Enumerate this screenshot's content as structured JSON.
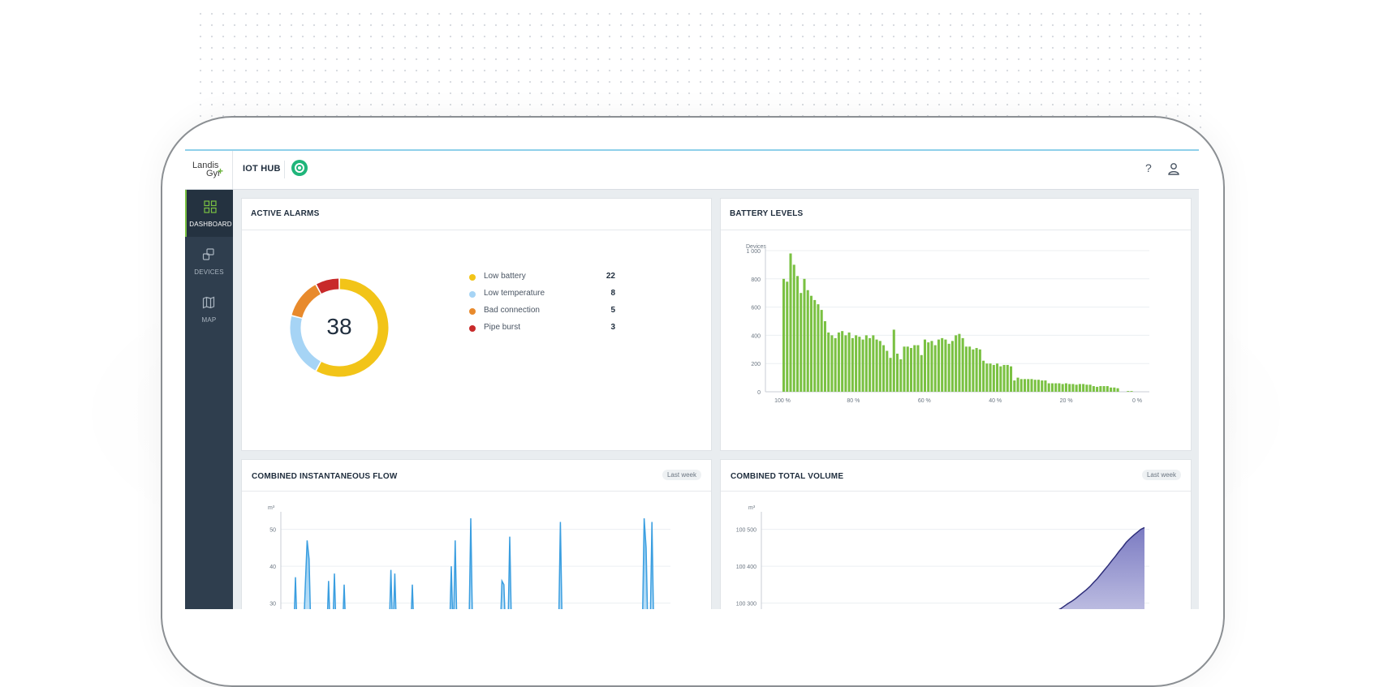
{
  "header": {
    "logo_line1": "Landis",
    "logo_line2": "Gyr",
    "logo_plus": "+",
    "app_title": "IOT HUB",
    "help": "?"
  },
  "sidebar": {
    "items": [
      {
        "label": "DASHBOARD",
        "icon": "grid-icon",
        "active": true
      },
      {
        "label": "DEVICES",
        "icon": "devices-icon",
        "active": false
      },
      {
        "label": "MAP",
        "icon": "map-icon",
        "active": false
      }
    ]
  },
  "colors": {
    "accent": "#7ac142",
    "sidebar": "#2f3e4e",
    "battery_bar": "#7ac142",
    "flow": "#3a9ee0",
    "volume": "#5c5caa"
  },
  "alarms": {
    "title": "ACTIVE ALARMS",
    "total": "38",
    "chart_data": {
      "type": "pie",
      "labels": [
        "Low battery",
        "Low temperature",
        "Bad connection",
        "Pipe burst"
      ],
      "values": [
        22,
        8,
        5,
        3
      ],
      "colors": [
        "#f2c418",
        "#a6d4f5",
        "#e88a2c",
        "#c82a2a"
      ]
    },
    "items": [
      {
        "name": "Low battery",
        "value": "22",
        "color": "#f2c418"
      },
      {
        "name": "Low temperature",
        "value": "8",
        "color": "#a6d4f5"
      },
      {
        "name": "Bad connection",
        "value": "5",
        "color": "#e88a2c"
      },
      {
        "name": "Pipe burst",
        "value": "3",
        "color": "#c82a2a"
      }
    ]
  },
  "battery": {
    "title": "BATTERY LEVELS",
    "chart_data": {
      "type": "bar",
      "ylabel": "Devices",
      "ylim": [
        0,
        1000
      ],
      "yticks": [
        "0",
        "200",
        "400",
        "600",
        "800",
        "1 000"
      ],
      "xticks": [
        "100 %",
        "80 %",
        "60 %",
        "40 %",
        "20 %",
        "0 %"
      ],
      "values": [
        800,
        780,
        980,
        900,
        820,
        700,
        800,
        720,
        680,
        650,
        620,
        580,
        500,
        420,
        400,
        380,
        420,
        430,
        400,
        420,
        380,
        400,
        390,
        370,
        400,
        380,
        400,
        370,
        360,
        330,
        290,
        240,
        440,
        270,
        230,
        320,
        320,
        310,
        330,
        330,
        260,
        370,
        350,
        360,
        330,
        370,
        380,
        370,
        340,
        360,
        400,
        410,
        380,
        320,
        320,
        300,
        310,
        300,
        220,
        200,
        200,
        190,
        200,
        180,
        190,
        190,
        180,
        80,
        100,
        90,
        90,
        90,
        90,
        85,
        85,
        80,
        80,
        60,
        60,
        60,
        60,
        55,
        60,
        55,
        55,
        50,
        55,
        55,
        50,
        50,
        40,
        35,
        40,
        40,
        40,
        30,
        30,
        25,
        0,
        0,
        5,
        5,
        0
      ]
    }
  },
  "flow": {
    "title": "COMBINED INSTANTANEOUS FLOW",
    "badge": "Last week",
    "chart_data": {
      "type": "area",
      "ylabel": "m³",
      "yticks": [
        "30",
        "40",
        "50"
      ],
      "ylim": [
        20,
        53
      ],
      "values": [
        20,
        20,
        20,
        20,
        20,
        37,
        20,
        20,
        20,
        20,
        34,
        47,
        42,
        20,
        20,
        20,
        20,
        20,
        20,
        20,
        20,
        20,
        36,
        20,
        20,
        38,
        20,
        20,
        20,
        20,
        35,
        20,
        20,
        20,
        20,
        20,
        20,
        20,
        20,
        20,
        20,
        20,
        20,
        20,
        20,
        20,
        20,
        20,
        20,
        20,
        20,
        20,
        20,
        20,
        39,
        20,
        38,
        20,
        20,
        20,
        20,
        20,
        20,
        20,
        20,
        35,
        20,
        20,
        20,
        20,
        20,
        20,
        20,
        20,
        20,
        20,
        20,
        20,
        20,
        20,
        20,
        20,
        20,
        20,
        20,
        40,
        20,
        47,
        20,
        20,
        20,
        20,
        20,
        20,
        20,
        53,
        20,
        20,
        20,
        20,
        20,
        20,
        20,
        20,
        20,
        20,
        20,
        20,
        20,
        20,
        20,
        36,
        35,
        20,
        20,
        48,
        20,
        20,
        20,
        20,
        20,
        20,
        20,
        20,
        20,
        20,
        20,
        20,
        20,
        20,
        20,
        20,
        20,
        20,
        20,
        20,
        20,
        20,
        20,
        20,
        20,
        52,
        20,
        20,
        20,
        20,
        20,
        20,
        20,
        20,
        20,
        20,
        20,
        20,
        20,
        20,
        20,
        20,
        20,
        20,
        20,
        20,
        20,
        20,
        20,
        20,
        20,
        20,
        20,
        20,
        20,
        20,
        20,
        20,
        20,
        20,
        20,
        20,
        20,
        20,
        20,
        20,
        20,
        20,
        53,
        45,
        20,
        20,
        52,
        20,
        20,
        20,
        20,
        20,
        20,
        20
      ]
    }
  },
  "volume": {
    "title": "COMBINED TOTAL VOLUME",
    "badge": "Last week",
    "chart_data": {
      "type": "area",
      "ylabel": "m³",
      "yticks": [
        "100 300",
        "100 400",
        "100 500"
      ],
      "ylim": [
        100200,
        100530
      ],
      "values": [
        100200,
        100200,
        100200,
        100200,
        100200,
        100200,
        100200,
        100200,
        100200,
        100200,
        100200,
        100200,
        100200,
        100200,
        100200,
        100200,
        100200,
        100200,
        100200,
        100200,
        100200,
        100200,
        100200,
        100200,
        100200,
        100200,
        100200,
        100200,
        100200,
        100200,
        100200,
        100200,
        100200,
        100200,
        100200,
        100200,
        100200,
        100200,
        100200,
        100200,
        100200,
        100200,
        100200,
        100200,
        100200,
        100200,
        100200,
        100200,
        100200,
        100200,
        100200,
        100200,
        100200,
        100200,
        100200,
        100200,
        100200,
        100200,
        100200,
        100200,
        100200,
        100200,
        100200,
        100200,
        100200,
        100200,
        100200,
        100205,
        100210,
        100218,
        100225,
        100230,
        100236,
        100240,
        100245,
        100250,
        100256,
        100262,
        100268,
        100273,
        100280,
        100285,
        100292,
        100299,
        100305,
        100312,
        100320,
        100328,
        100336,
        100345,
        100356,
        100366,
        100378,
        100390,
        100402,
        100415,
        100427,
        100440,
        100452,
        100465,
        100475,
        100484,
        100492,
        100500,
        100505
      ]
    }
  }
}
